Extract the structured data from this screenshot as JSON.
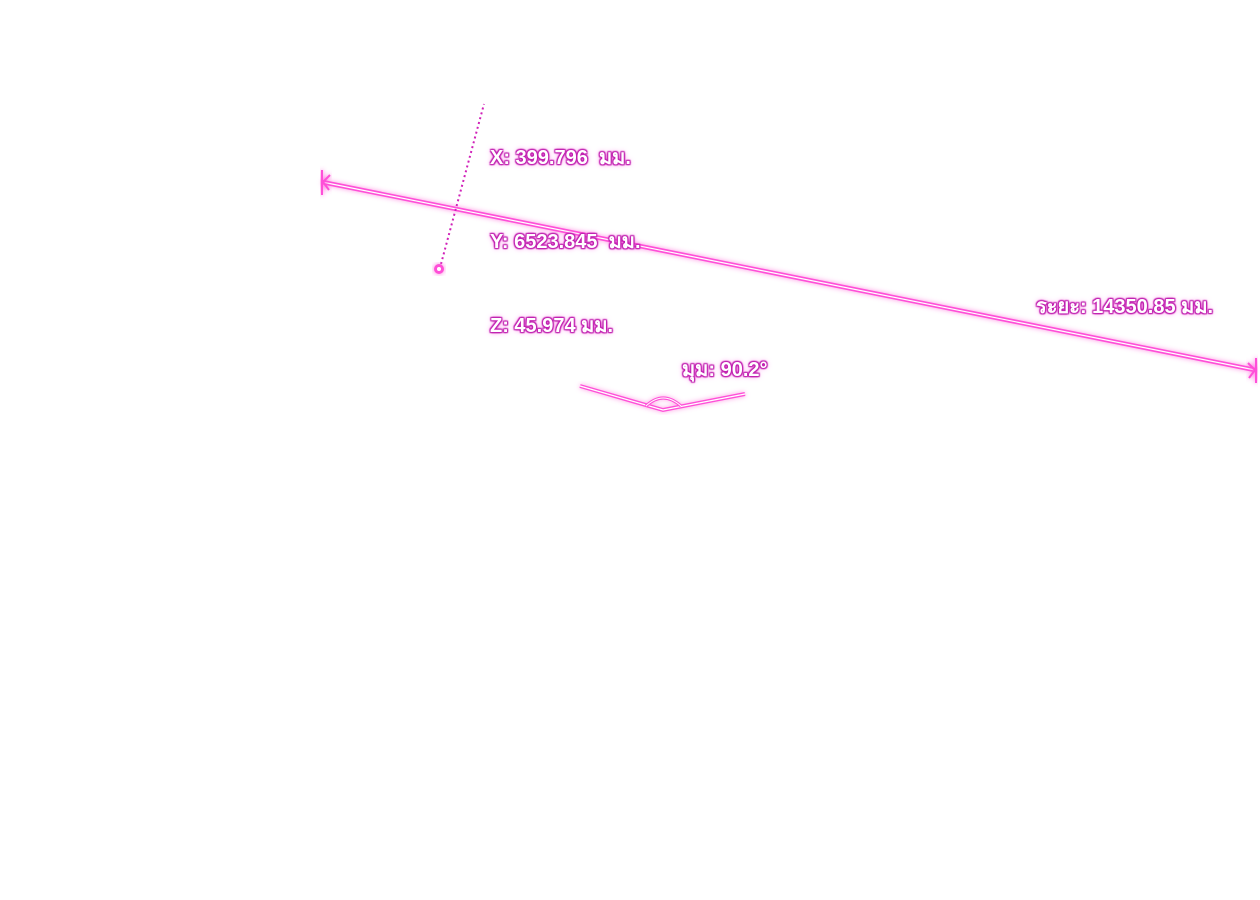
{
  "colors": {
    "accent": "#ff40d0",
    "glow": "#ff80e8",
    "text_outline": "#c020b0"
  },
  "point": {
    "x_label": "X: 399.796  มม.",
    "y_label": "Y: 6523.845  มม.",
    "z_label": "Z: 45.974 มม."
  },
  "distance": {
    "label": "ระยะ: 14350.85 มม."
  },
  "angle": {
    "label": "มุม: 90.2°"
  }
}
